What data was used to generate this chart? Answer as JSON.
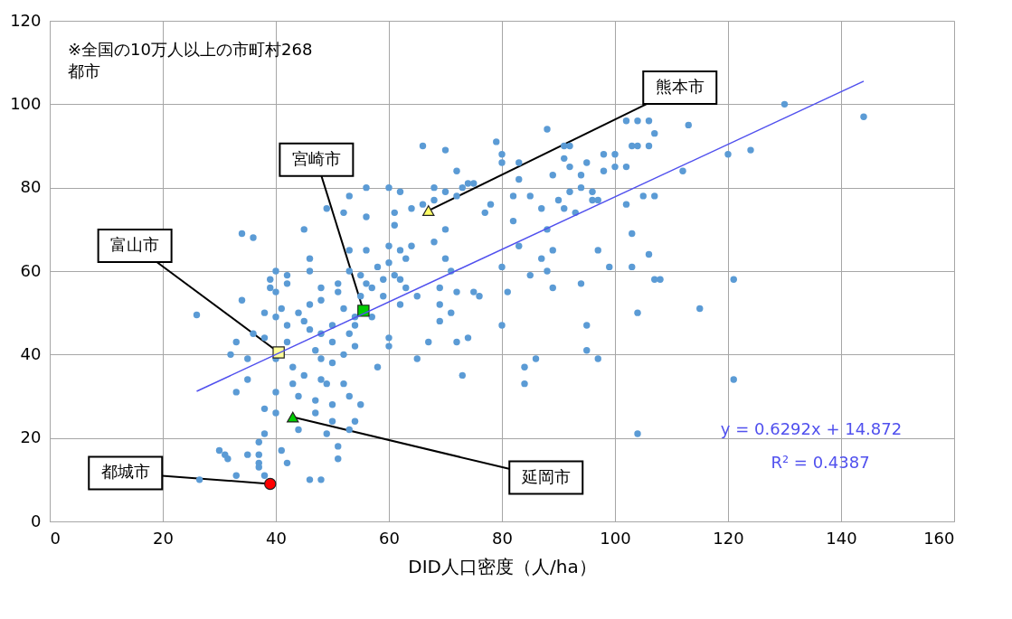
{
  "chart_data": {
    "type": "scatter",
    "xlabel": "DID人口密度（人/ha）",
    "xlim": [
      0,
      160
    ],
    "xticks": [
      0,
      20,
      40,
      60,
      80,
      100,
      120,
      140,
      160
    ],
    "ylim": [
      0,
      120
    ],
    "yticks": [
      0,
      20,
      40,
      60,
      80,
      100,
      120
    ],
    "grid": true,
    "series": [
      {
        "color": "#5b9bd5",
        "marker": "circle",
        "x": [
          26,
          26.5,
          30,
          31,
          31.5,
          32,
          33,
          33,
          33,
          34,
          34,
          35,
          35,
          35,
          36,
          36,
          37,
          37,
          37,
          37,
          38,
          38,
          38,
          38,
          38,
          39,
          39,
          40,
          40,
          40,
          40,
          41,
          40,
          40,
          41,
          42,
          42,
          42,
          41,
          42,
          42,
          43,
          43,
          44,
          44,
          44,
          45,
          45,
          45,
          46,
          46,
          46,
          46,
          46,
          47,
          47,
          47,
          48,
          48,
          48,
          48,
          48,
          48,
          49,
          49,
          49,
          50,
          50,
          50,
          50,
          50,
          51,
          51,
          51,
          51,
          52,
          52,
          52,
          52,
          53,
          53,
          53,
          53,
          53,
          53,
          54,
          54,
          54,
          54,
          55,
          55,
          55,
          56,
          56,
          56,
          56,
          57,
          57,
          58,
          58,
          59,
          59,
          60,
          60,
          60,
          60,
          60,
          61,
          61,
          61,
          62,
          62,
          62,
          62,
          63,
          63,
          64,
          64,
          65,
          65,
          66,
          66,
          67,
          68,
          68,
          68,
          69,
          69,
          69,
          70,
          70,
          70,
          70,
          71,
          71,
          72,
          72,
          72,
          72,
          73,
          73,
          74,
          74,
          75,
          75,
          76,
          77,
          78,
          79,
          80,
          80,
          80,
          80,
          81,
          82,
          82,
          83,
          83,
          83,
          84,
          84,
          85,
          85,
          86,
          87,
          87,
          88,
          88,
          88,
          89,
          89,
          89,
          90,
          91,
          91,
          91,
          92,
          92,
          92,
          93,
          94,
          94,
          94,
          95,
          95,
          95,
          96,
          96,
          97,
          97,
          97,
          98,
          98,
          99,
          100,
          100,
          102,
          102,
          102,
          103,
          103,
          103,
          104,
          104,
          104,
          104,
          105,
          106,
          106,
          106,
          107,
          107,
          107,
          108,
          112,
          113,
          115,
          120,
          121,
          121,
          124,
          130,
          144
        ],
        "values": [
          49.5,
          10,
          17,
          16,
          15,
          40,
          31,
          43,
          11,
          69,
          53,
          39,
          34,
          16,
          68,
          45,
          19,
          16,
          14,
          13,
          11,
          21,
          27,
          44,
          50,
          56,
          58,
          60,
          55,
          49,
          39,
          40,
          31,
          26,
          17,
          14,
          59,
          57,
          51,
          47,
          43,
          37,
          33,
          30,
          22,
          50,
          35,
          48,
          70,
          63,
          60,
          52,
          46,
          10,
          41,
          29,
          26,
          34,
          39,
          45,
          53,
          56,
          10,
          75,
          21,
          33,
          47,
          43,
          38,
          28,
          24,
          55,
          57,
          18,
          15,
          74,
          51,
          40,
          33,
          60,
          65,
          78,
          45,
          30,
          22,
          49,
          47,
          24,
          42,
          54,
          59,
          28,
          80,
          57,
          65,
          73,
          56,
          49,
          37,
          61,
          54,
          58,
          80,
          66,
          62,
          44,
          42,
          74,
          71,
          59,
          79,
          65,
          58,
          52,
          63,
          56,
          75,
          66,
          54,
          39,
          90,
          76,
          43,
          80,
          77,
          67,
          52,
          48,
          56,
          89,
          79,
          70,
          63,
          60,
          50,
          84,
          78,
          55,
          43,
          80,
          35,
          81,
          44,
          55,
          81,
          54,
          74,
          76,
          91,
          88,
          86,
          61,
          47,
          55,
          78,
          72,
          86,
          82,
          66,
          37,
          33,
          78,
          59,
          39,
          75,
          63,
          94,
          70,
          60,
          83,
          65,
          56,
          77,
          90,
          87,
          75,
          90,
          85,
          79,
          74,
          83,
          80,
          57,
          41,
          86,
          47,
          79,
          77,
          77,
          65,
          39,
          88,
          84,
          61,
          85,
          88,
          96,
          85,
          76,
          90,
          69,
          61,
          96,
          90,
          50,
          21,
          78,
          96,
          90,
          64,
          93,
          78,
          58,
          58,
          84,
          95,
          51,
          88,
          58,
          34,
          89,
          100,
          97
        ]
      },
      {
        "type": "scatter",
        "color": "#ffff66",
        "marker": "triangle",
        "x": [
          67
        ],
        "values": [
          74.5
        ]
      },
      {
        "type": "scatter",
        "color": "#00cc00",
        "marker": "square",
        "x": [
          55.5
        ],
        "values": [
          50.5
        ]
      },
      {
        "type": "scatter",
        "color": "#ffff99",
        "marker": "square",
        "x": [
          40.5
        ],
        "values": [
          40.5
        ]
      },
      {
        "type": "scatter",
        "color": "#00cc00",
        "marker": "triangle",
        "x": [
          43
        ],
        "values": [
          25
        ]
      },
      {
        "type": "scatter",
        "color": "#ff0000",
        "marker": "circle",
        "x": [
          39
        ],
        "values": [
          9
        ]
      },
      {
        "type": "line",
        "color": "#5050ee",
        "marker": "none",
        "x": [
          26,
          144
        ],
        "values": [
          31.2,
          105.5
        ]
      }
    ],
    "annotations": [
      "※全国の10万人以上の市町村268\n都市",
      {
        "text": "熊本市",
        "x": 67,
        "y": 74.5
      },
      {
        "text": "宮崎市",
        "x": 55.5,
        "y": 50.5
      },
      {
        "text": "富山市",
        "x": 40.5,
        "y": 40.5
      },
      {
        "text": "延岡市",
        "x": 43,
        "y": 25
      },
      {
        "text": "都城市",
        "x": 39,
        "y": 9
      },
      "y = 0.6292x + 14.872",
      "R² = 0.4387"
    ]
  }
}
